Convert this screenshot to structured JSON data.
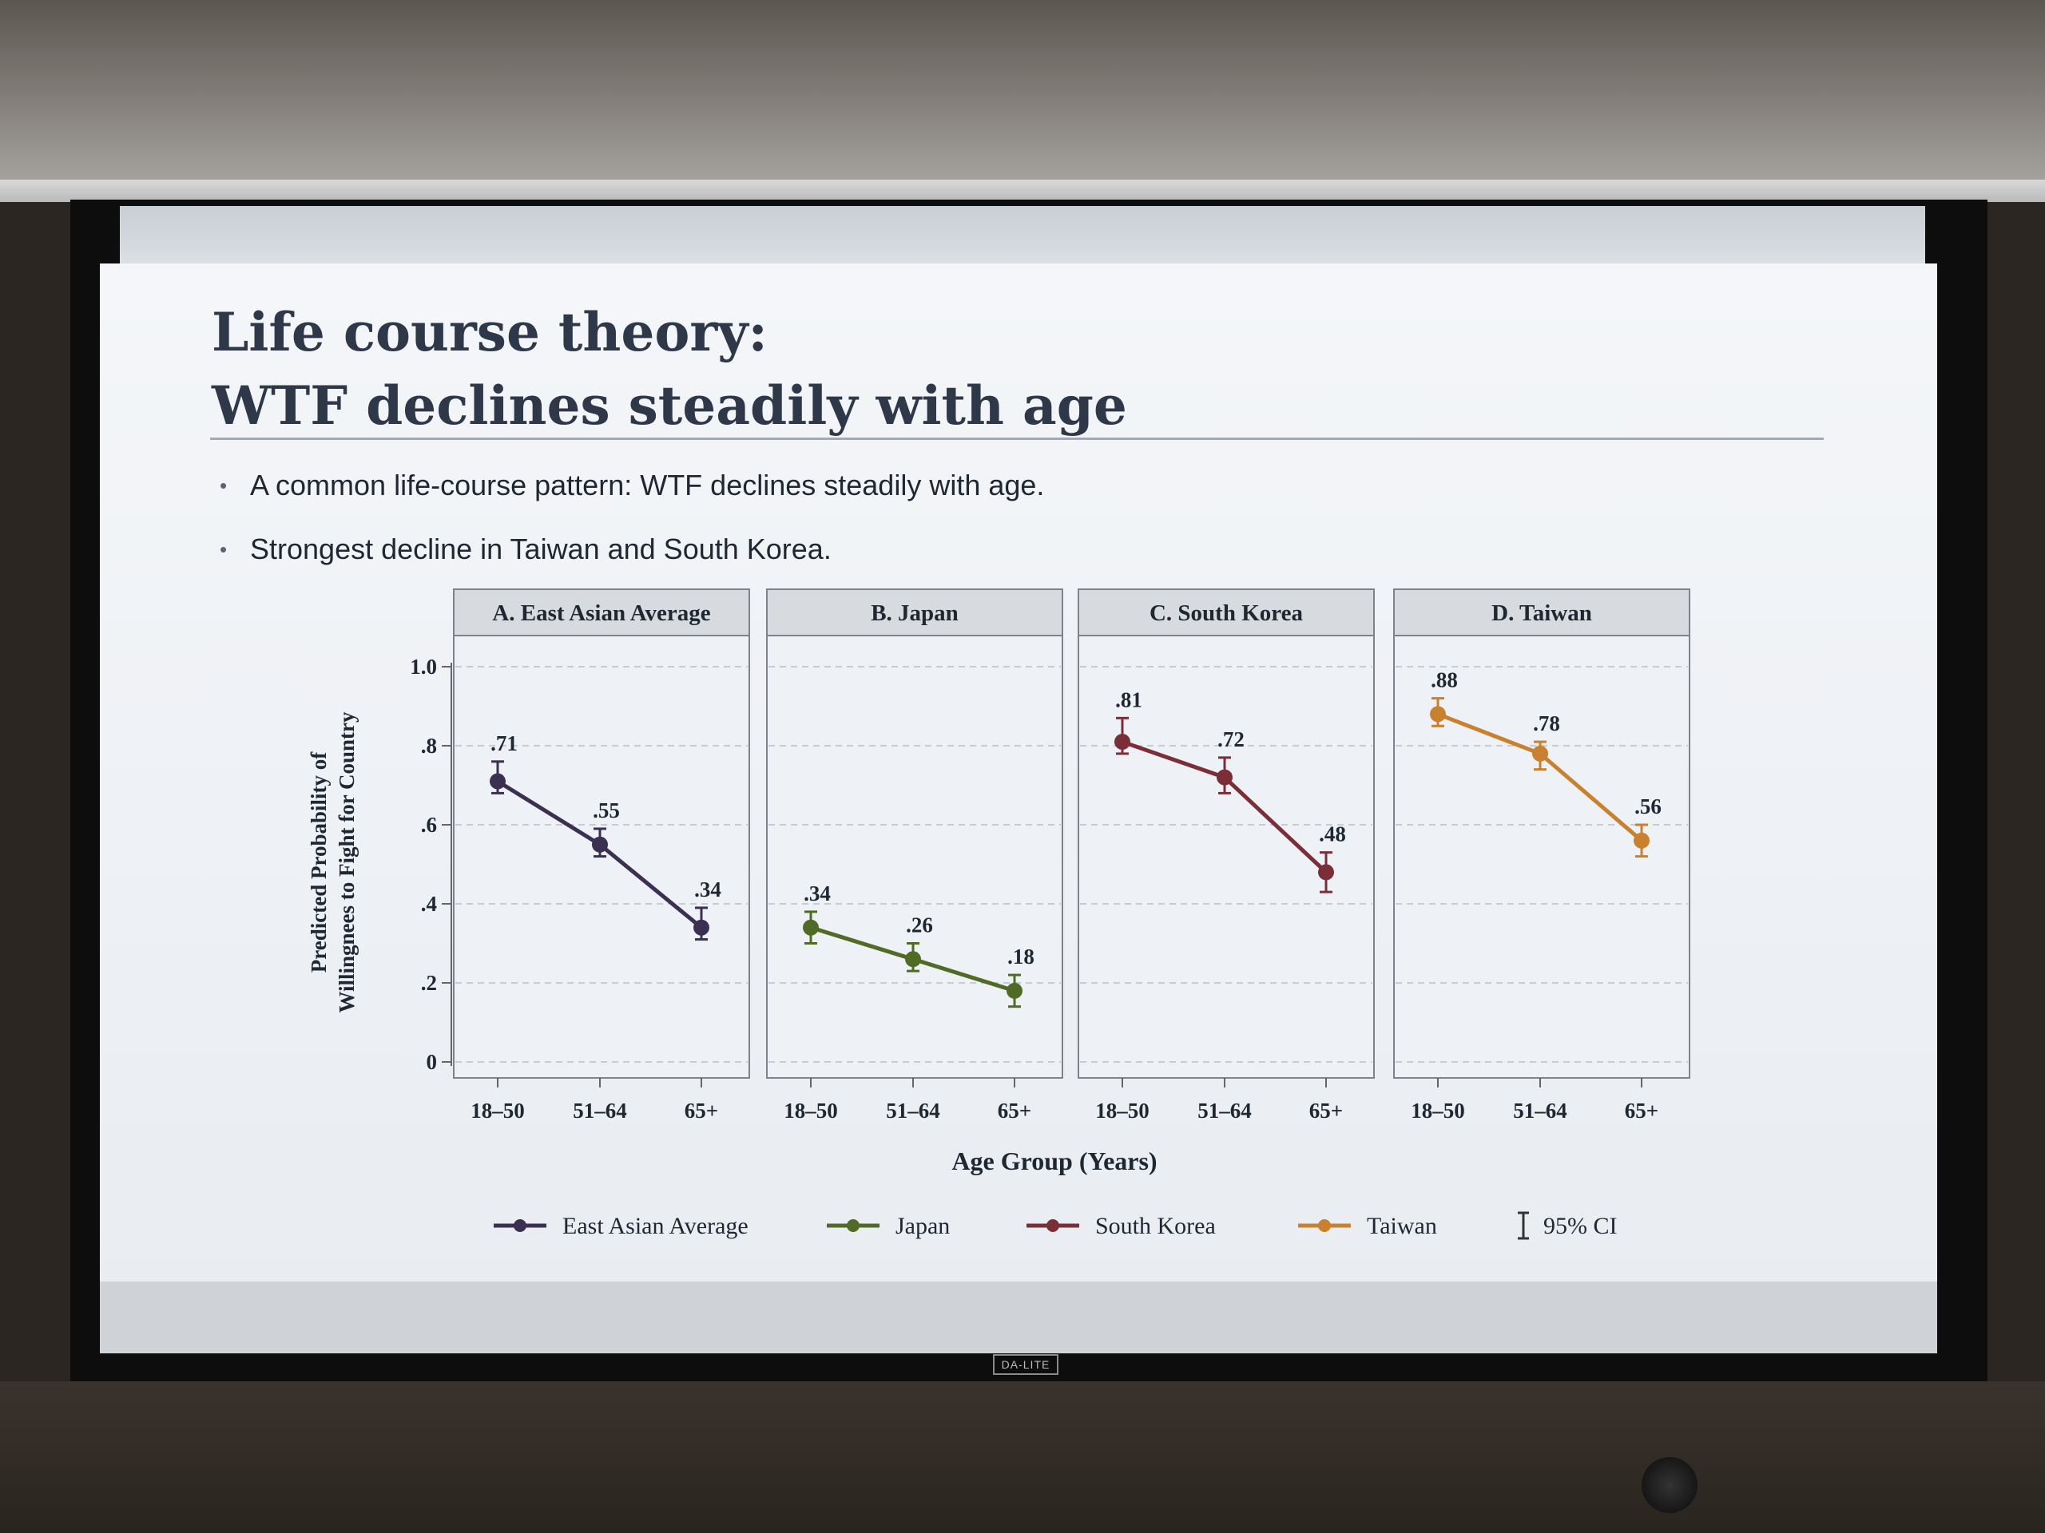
{
  "slide": {
    "title_line1": "Life course theory:",
    "title_line2": "WTF declines steadily with age",
    "bullets": [
      "A common life-course pattern: WTF declines steadily with age.",
      "Strongest decline in Taiwan and South Korea."
    ]
  },
  "projector": {
    "brand": "DA-LITE"
  },
  "chart_data": {
    "type": "line",
    "ylabel_line1": "Predicted Probability of",
    "ylabel_line2": "Willingnees to Fight for Country",
    "xlabel": "Age Group (Years)",
    "ylim": [
      0,
      1.0
    ],
    "yticks": [
      0,
      0.2,
      0.4,
      0.6,
      0.8,
      1.0
    ],
    "ytick_labels": [
      "0",
      ".2",
      ".4",
      ".6",
      ".8",
      "1.0"
    ],
    "categories": [
      "18–50",
      "51–64",
      "65+"
    ],
    "grid": true,
    "legend_position": "bottom",
    "ci_legend_label": "95% CI",
    "panels": [
      {
        "title": "A. East Asian Average",
        "series": "East Asian Average",
        "color": "#3b2f52",
        "values": [
          0.71,
          0.55,
          0.34
        ],
        "labels": [
          ".71",
          ".55",
          ".34"
        ],
        "ci_low": [
          0.68,
          0.52,
          0.31
        ],
        "ci_high": [
          0.76,
          0.59,
          0.39
        ]
      },
      {
        "title": "B. Japan",
        "series": "Japan",
        "color": "#4f6b25",
        "values": [
          0.34,
          0.26,
          0.18
        ],
        "labels": [
          ".34",
          ".26",
          ".18"
        ],
        "ci_low": [
          0.3,
          0.23,
          0.14
        ],
        "ci_high": [
          0.38,
          0.3,
          0.22
        ]
      },
      {
        "title": "C. South Korea",
        "series": "South Korea",
        "color": "#7a2f38",
        "values": [
          0.81,
          0.72,
          0.48
        ],
        "labels": [
          ".81",
          ".72",
          ".48"
        ],
        "ci_low": [
          0.78,
          0.68,
          0.43
        ],
        "ci_high": [
          0.87,
          0.77,
          0.53
        ]
      },
      {
        "title": "D. Taiwan",
        "series": "Taiwan",
        "color": "#c9802f",
        "values": [
          0.88,
          0.78,
          0.56
        ],
        "labels": [
          ".88",
          ".78",
          ".56"
        ],
        "ci_low": [
          0.85,
          0.74,
          0.52
        ],
        "ci_high": [
          0.92,
          0.81,
          0.6
        ]
      }
    ]
  }
}
